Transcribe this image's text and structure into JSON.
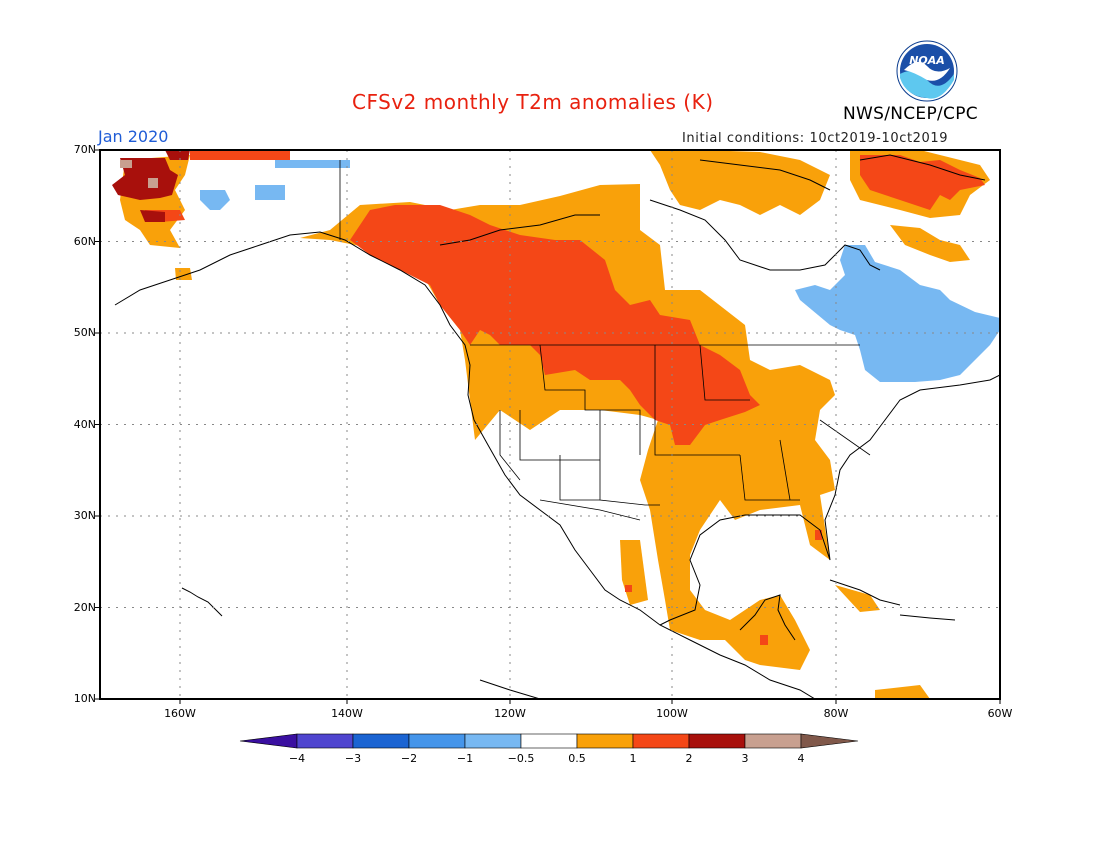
{
  "header": {
    "title": "CFSv2 monthly T2m anomalies (K)",
    "period": "Jan 2020",
    "initial_conditions": "Initial conditions: 10ct2019-10ct2019",
    "agency": "NWS/NCEP/CPC",
    "logo_text": "NOAA"
  },
  "map": {
    "projection": "lat-lon",
    "lon_range": [
      -172,
      -60
    ],
    "lat_range": [
      10,
      70
    ],
    "grid": true,
    "lat_labels": [
      "70N",
      "60N",
      "50N",
      "40N",
      "30N",
      "20N",
      "10N"
    ],
    "lon_labels": [
      "160W",
      "140W",
      "120W",
      "100W",
      "80W",
      "60W"
    ],
    "regions": [
      {
        "name": "western-canada-alaska-warm",
        "category": "1 to 2"
      },
      {
        "name": "northern-plains-warm",
        "category": "1 to 2"
      },
      {
        "name": "southeast-us-warm",
        "category": "0.5 to 1"
      },
      {
        "name": "mexico-central-america-warm",
        "category": "0.5 to 1"
      },
      {
        "name": "quebec-labrador-cool",
        "category": "-1 to -0.5"
      },
      {
        "name": "greenland-warm",
        "category": "1 to 2"
      },
      {
        "name": "western-alaska-very-warm",
        "category": "2 to 3"
      }
    ]
  },
  "colorbar": {
    "ticks": [
      "-4",
      "-3",
      "-2",
      "-1",
      "-0.5",
      "0.5",
      "1",
      "2",
      "3",
      "4"
    ],
    "colors": [
      "#3a0fa0",
      "#4f45cf",
      "#1b64d2",
      "#4595ea",
      "#77b8f2",
      "#ffffff",
      "#f9a10a",
      "#f44717",
      "#a8100c",
      "#c8a090",
      "#80584a"
    ]
  }
}
